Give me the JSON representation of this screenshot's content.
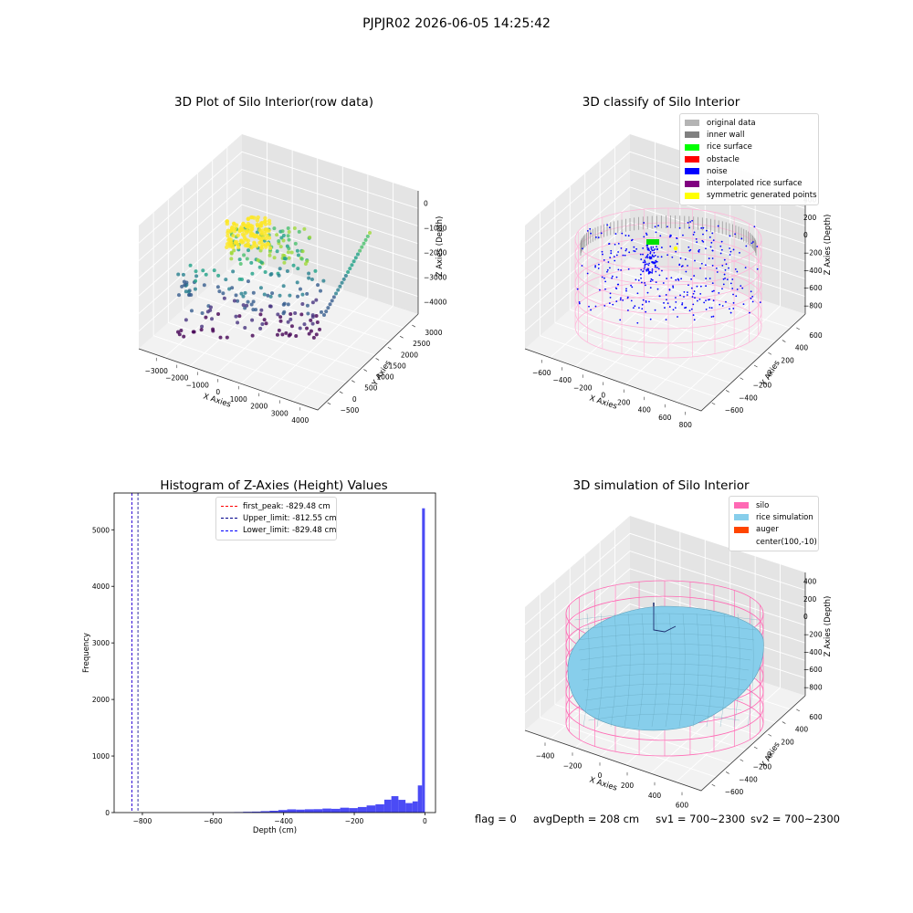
{
  "suptitle": "PJPJR02 2026-06-05 14:25:42",
  "chart_data": [
    {
      "type": "scatter",
      "subtype": "3d",
      "title": "3D Plot of Silo Interior(row data)",
      "xlabel": "X Axies",
      "ylabel": "Y Axies",
      "zlabel": "Z Axies (Depth)",
      "x_ticks": [
        "−3000",
        "−2000",
        "−1000",
        "0",
        "1000",
        "2000",
        "3000",
        "4000"
      ],
      "y_ticks": [
        "−500",
        "0",
        "500",
        "1000",
        "1500",
        "2000",
        "2500",
        "3000"
      ],
      "z_ticks": [
        "0",
        "−1000",
        "−2000",
        "−3000",
        "−4000"
      ],
      "colormap": "viridis",
      "grid": true
    },
    {
      "type": "scatter",
      "subtype": "3d",
      "title": "3D classify of Silo Interior",
      "xlabel": "X Axies",
      "ylabel": "Y Axies",
      "zlabel": "Z Axies (Depth)",
      "x_ticks": [
        "−600",
        "−400",
        "−200",
        "0",
        "200",
        "400",
        "600",
        "800"
      ],
      "y_ticks": [
        "−600",
        "−400",
        "−200",
        "0",
        "200",
        "400",
        "600"
      ],
      "z_ticks": [
        "400",
        "200",
        "0",
        "−200",
        "−400",
        "−600",
        "−800"
      ],
      "legend_position": "top-right",
      "legend": [
        {
          "label": "original data",
          "color": "#b4b4b4"
        },
        {
          "label": "inner wall",
          "color": "#808080"
        },
        {
          "label": "rice surface",
          "color": "#00ff00"
        },
        {
          "label": "obstacle",
          "color": "#ff0000"
        },
        {
          "label": "noise",
          "color": "#0000ff"
        },
        {
          "label": "interpolated rice surface",
          "color": "#800080"
        },
        {
          "label": "symmetric generated points",
          "color": "#ffff00"
        }
      ],
      "grid": true
    },
    {
      "type": "bar",
      "subtype": "histogram",
      "title": "Histogram of Z-Axies (Height) Values",
      "xlabel": "Depth (cm)",
      "ylabel": "Frequency",
      "xlim": [
        -880,
        30
      ],
      "ylim": [
        0,
        5650
      ],
      "x_ticks": [
        -800,
        -600,
        -400,
        -200,
        0
      ],
      "x_tick_labels": [
        "−800",
        "−600",
        "−400",
        "−200",
        "0"
      ],
      "y_ticks": [
        0,
        1000,
        2000,
        3000,
        4000,
        5000
      ],
      "bar_color": "#4b4bf5",
      "bins": [
        {
          "from": -665,
          "to": -640,
          "count": 3
        },
        {
          "from": -640,
          "to": -615,
          "count": 4
        },
        {
          "from": -615,
          "to": -590,
          "count": 5
        },
        {
          "from": -590,
          "to": -565,
          "count": 5
        },
        {
          "from": -565,
          "to": -540,
          "count": 6
        },
        {
          "from": -540,
          "to": -515,
          "count": 9
        },
        {
          "from": -515,
          "to": -490,
          "count": 14
        },
        {
          "from": -490,
          "to": -465,
          "count": 17
        },
        {
          "from": -465,
          "to": -440,
          "count": 25
        },
        {
          "from": -440,
          "to": -415,
          "count": 32
        },
        {
          "from": -415,
          "to": -390,
          "count": 45
        },
        {
          "from": -390,
          "to": -365,
          "count": 57
        },
        {
          "from": -365,
          "to": -340,
          "count": 52
        },
        {
          "from": -340,
          "to": -315,
          "count": 58
        },
        {
          "from": -315,
          "to": -290,
          "count": 60
        },
        {
          "from": -290,
          "to": -265,
          "count": 71
        },
        {
          "from": -265,
          "to": -240,
          "count": 66
        },
        {
          "from": -240,
          "to": -215,
          "count": 86
        },
        {
          "from": -215,
          "to": -190,
          "count": 79
        },
        {
          "from": -190,
          "to": -165,
          "count": 98
        },
        {
          "from": -165,
          "to": -140,
          "count": 126
        },
        {
          "from": -140,
          "to": -115,
          "count": 146
        },
        {
          "from": -115,
          "to": -95,
          "count": 228
        },
        {
          "from": -95,
          "to": -75,
          "count": 290
        },
        {
          "from": -75,
          "to": -55,
          "count": 225
        },
        {
          "from": -55,
          "to": -35,
          "count": 168
        },
        {
          "from": -35,
          "to": -20,
          "count": 198
        },
        {
          "from": -20,
          "to": -8,
          "count": 480
        },
        {
          "from": -8,
          "to": 0,
          "count": 5380
        }
      ],
      "vlines": [
        {
          "label": "first_peak: -829.48 cm",
          "x": -829.48,
          "color": "#ff0000"
        },
        {
          "label": "Upper_limit: -812.55 cm",
          "x": -812.55,
          "color": "#00008b"
        },
        {
          "label": "Lower_limit: -829.48 cm",
          "x": -829.48,
          "color": "#0000ff"
        }
      ],
      "legend_position": "upper-center",
      "grid": false
    },
    {
      "type": "surface",
      "subtype": "3d",
      "title": "3D simulation of Silo Interior",
      "xlabel": "X Axies",
      "ylabel": "Y Axies",
      "zlabel": "Z Axies (Depth)",
      "x_ticks": [
        "−400",
        "−200",
        "0",
        "200",
        "400",
        "600"
      ],
      "y_ticks": [
        "−600",
        "−400",
        "−200",
        "0",
        "200",
        "400",
        "600"
      ],
      "z_ticks": [
        "400",
        "200",
        "0",
        "−200",
        "−400",
        "−600",
        "−800"
      ],
      "legend_position": "top-right",
      "legend": [
        {
          "label": "silo",
          "color": "#ff69b4"
        },
        {
          "label": "rice simulation",
          "color": "#87ceeb"
        },
        {
          "label": "auger",
          "color": "#ff4500"
        },
        {
          "label": "center(100,-10)",
          "color": "#ffffff"
        }
      ],
      "grid": true
    }
  ],
  "footnote": {
    "flag": "flag = 0",
    "avg_depth": "avgDepth = 208 cm",
    "sv1": "sv1 = 700~2300",
    "sv2": "sv2 = 700~2300"
  }
}
